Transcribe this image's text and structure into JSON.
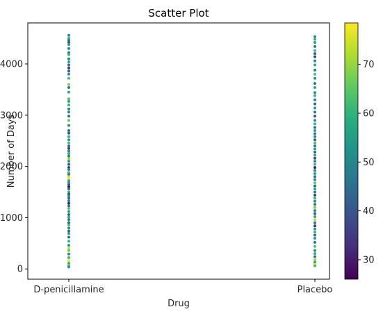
{
  "chart_data": {
    "type": "scatter",
    "title": "Scatter Plot",
    "xlabel": "Drug",
    "ylabel": "Number of Days",
    "categories": [
      "D-penicillamine",
      "Placebo"
    ],
    "ylim": [
      -200,
      4800
    ],
    "yticks": [
      0,
      1000,
      2000,
      3000,
      4000
    ],
    "grid": false,
    "colorbar": {
      "colormap": "viridis",
      "range": [
        26,
        78.5
      ],
      "ticks": [
        30,
        40,
        50,
        60,
        70
      ]
    },
    "series": [
      {
        "category": "D-penicillamine",
        "points": [
          {
            "y": 4560,
            "c": 50
          },
          {
            "y": 4500,
            "c": 60
          },
          {
            "y": 4460,
            "c": 45
          },
          {
            "y": 4420,
            "c": 38
          },
          {
            "y": 4380,
            "c": 55
          },
          {
            "y": 4300,
            "c": 52
          },
          {
            "y": 4220,
            "c": 48
          },
          {
            "y": 4180,
            "c": 62
          },
          {
            "y": 4100,
            "c": 50
          },
          {
            "y": 4040,
            "c": 57
          },
          {
            "y": 3980,
            "c": 44
          },
          {
            "y": 3920,
            "c": 34
          },
          {
            "y": 3860,
            "c": 41
          },
          {
            "y": 3800,
            "c": 52
          },
          {
            "y": 3720,
            "c": 63
          },
          {
            "y": 3600,
            "c": 68
          },
          {
            "y": 3540,
            "c": 47
          },
          {
            "y": 3450,
            "c": 58
          },
          {
            "y": 3320,
            "c": 64
          },
          {
            "y": 3270,
            "c": 56
          },
          {
            "y": 3200,
            "c": 61
          },
          {
            "y": 3120,
            "c": 49
          },
          {
            "y": 3060,
            "c": 53
          },
          {
            "y": 2980,
            "c": 44
          },
          {
            "y": 2900,
            "c": 66
          },
          {
            "y": 2800,
            "c": 51
          },
          {
            "y": 2700,
            "c": 46
          },
          {
            "y": 2650,
            "c": 40
          },
          {
            "y": 2580,
            "c": 59
          },
          {
            "y": 2520,
            "c": 54
          },
          {
            "y": 2460,
            "c": 63
          },
          {
            "y": 2400,
            "c": 43
          },
          {
            "y": 2350,
            "c": 37
          },
          {
            "y": 2300,
            "c": 50
          },
          {
            "y": 2250,
            "c": 58
          },
          {
            "y": 2200,
            "c": 47
          },
          {
            "y": 2150,
            "c": 71
          },
          {
            "y": 2100,
            "c": 55
          },
          {
            "y": 2040,
            "c": 42
          },
          {
            "y": 1980,
            "c": 35
          },
          {
            "y": 1940,
            "c": 49
          },
          {
            "y": 1880,
            "c": 61
          },
          {
            "y": 1840,
            "c": 45
          },
          {
            "y": 1800,
            "c": 75
          },
          {
            "y": 1760,
            "c": 78
          },
          {
            "y": 1720,
            "c": 57
          },
          {
            "y": 1680,
            "c": 52
          },
          {
            "y": 1640,
            "c": 39
          },
          {
            "y": 1600,
            "c": 29
          },
          {
            "y": 1560,
            "c": 48
          },
          {
            "y": 1500,
            "c": 60
          },
          {
            "y": 1460,
            "c": 36
          },
          {
            "y": 1420,
            "c": 53
          },
          {
            "y": 1380,
            "c": 44
          },
          {
            "y": 1330,
            "c": 50
          },
          {
            "y": 1280,
            "c": 31
          },
          {
            "y": 1230,
            "c": 46
          },
          {
            "y": 1180,
            "c": 65
          },
          {
            "y": 1120,
            "c": 55
          },
          {
            "y": 1060,
            "c": 41
          },
          {
            "y": 1010,
            "c": 58
          },
          {
            "y": 960,
            "c": 49
          },
          {
            "y": 900,
            "c": 38
          },
          {
            "y": 860,
            "c": 62
          },
          {
            "y": 800,
            "c": 51
          },
          {
            "y": 740,
            "c": 44
          },
          {
            "y": 690,
            "c": 56
          },
          {
            "y": 620,
            "c": 47
          },
          {
            "y": 540,
            "c": 60
          },
          {
            "y": 460,
            "c": 53
          },
          {
            "y": 400,
            "c": 74
          },
          {
            "y": 360,
            "c": 66
          },
          {
            "y": 290,
            "c": 50
          },
          {
            "y": 220,
            "c": 61
          },
          {
            "y": 160,
            "c": 77
          },
          {
            "y": 110,
            "c": 58
          },
          {
            "y": 70,
            "c": 67
          },
          {
            "y": 40,
            "c": 52
          }
        ]
      },
      {
        "category": "Placebo",
        "points": [
          {
            "y": 4530,
            "c": 52
          },
          {
            "y": 4480,
            "c": 60
          },
          {
            "y": 4420,
            "c": 55
          },
          {
            "y": 4340,
            "c": 47
          },
          {
            "y": 4260,
            "c": 62
          },
          {
            "y": 4200,
            "c": 40
          },
          {
            "y": 4140,
            "c": 36
          },
          {
            "y": 4060,
            "c": 50
          },
          {
            "y": 3980,
            "c": 57
          },
          {
            "y": 3880,
            "c": 48
          },
          {
            "y": 3800,
            "c": 63
          },
          {
            "y": 3720,
            "c": 54
          },
          {
            "y": 3620,
            "c": 45
          },
          {
            "y": 3540,
            "c": 58
          },
          {
            "y": 3440,
            "c": 52
          },
          {
            "y": 3380,
            "c": 61
          },
          {
            "y": 3300,
            "c": 49
          },
          {
            "y": 3220,
            "c": 42
          },
          {
            "y": 3140,
            "c": 55
          },
          {
            "y": 3060,
            "c": 47
          },
          {
            "y": 2980,
            "c": 38
          },
          {
            "y": 2900,
            "c": 51
          },
          {
            "y": 2830,
            "c": 60
          },
          {
            "y": 2760,
            "c": 44
          },
          {
            "y": 2700,
            "c": 56
          },
          {
            "y": 2640,
            "c": 48
          },
          {
            "y": 2580,
            "c": 52
          },
          {
            "y": 2520,
            "c": 40
          },
          {
            "y": 2460,
            "c": 63
          },
          {
            "y": 2400,
            "c": 46
          },
          {
            "y": 2340,
            "c": 54
          },
          {
            "y": 2280,
            "c": 43
          },
          {
            "y": 2220,
            "c": 58
          },
          {
            "y": 2160,
            "c": 37
          },
          {
            "y": 2100,
            "c": 50
          },
          {
            "y": 2040,
            "c": 62
          },
          {
            "y": 1980,
            "c": 29
          },
          {
            "y": 1920,
            "c": 48
          },
          {
            "y": 1860,
            "c": 56
          },
          {
            "y": 1800,
            "c": 44
          },
          {
            "y": 1740,
            "c": 53
          },
          {
            "y": 1680,
            "c": 65
          },
          {
            "y": 1620,
            "c": 41
          },
          {
            "y": 1560,
            "c": 57
          },
          {
            "y": 1500,
            "c": 49
          },
          {
            "y": 1440,
            "c": 35
          },
          {
            "y": 1380,
            "c": 60
          },
          {
            "y": 1320,
            "c": 52
          },
          {
            "y": 1260,
            "c": 45
          },
          {
            "y": 1200,
            "c": 68
          },
          {
            "y": 1140,
            "c": 50
          },
          {
            "y": 1080,
            "c": 39
          },
          {
            "y": 1020,
            "c": 58
          },
          {
            "y": 960,
            "c": 72
          },
          {
            "y": 900,
            "c": 47
          },
          {
            "y": 840,
            "c": 33
          },
          {
            "y": 780,
            "c": 54
          },
          {
            "y": 720,
            "c": 61
          },
          {
            "y": 660,
            "c": 43
          },
          {
            "y": 600,
            "c": 56
          },
          {
            "y": 520,
            "c": 48
          },
          {
            "y": 440,
            "c": 64
          },
          {
            "y": 360,
            "c": 51
          },
          {
            "y": 300,
            "c": 59
          },
          {
            "y": 240,
            "c": 46
          },
          {
            "y": 180,
            "c": 70
          },
          {
            "y": 130,
            "c": 55
          },
          {
            "y": 90,
            "c": 75
          },
          {
            "y": 60,
            "c": 62
          }
        ]
      }
    ]
  }
}
